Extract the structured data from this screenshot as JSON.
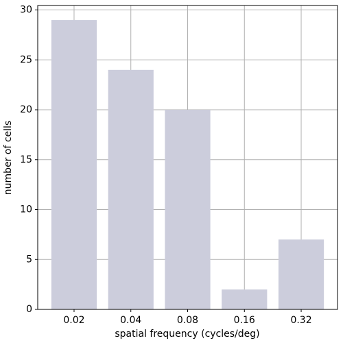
{
  "chart_data": {
    "type": "bar",
    "xlabel": "spatial frequency (cycles/deg)",
    "ylabel": "number of cells",
    "categories": [
      "0.02",
      "0.04",
      "0.08",
      "0.16",
      "0.32"
    ],
    "values": [
      29,
      24,
      20,
      2,
      7
    ],
    "color": "#cccddc",
    "ylim": [
      0,
      30.45
    ],
    "yticks": [
      0,
      5,
      10,
      15,
      20,
      25,
      30
    ],
    "grid": true
  }
}
